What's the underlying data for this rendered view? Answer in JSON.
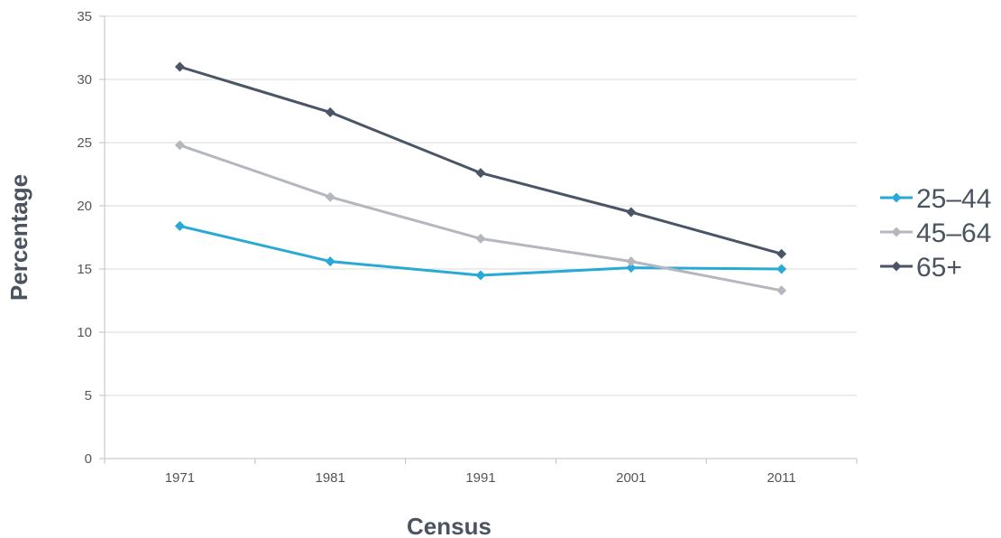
{
  "chart_data": {
    "type": "line",
    "title": "",
    "xlabel": "Census",
    "ylabel": "Percentage",
    "x": [
      "1971",
      "1981",
      "1991",
      "2001",
      "2011"
    ],
    "ylim": [
      0,
      35
    ],
    "yticks": [
      "0",
      "5",
      "10",
      "15",
      "20",
      "25",
      "30",
      "35"
    ],
    "grid": true,
    "legend": "right",
    "series": [
      {
        "name": "25–44",
        "color": "#29a9d6",
        "values": [
          18.4,
          15.6,
          14.5,
          15.1,
          15.0
        ]
      },
      {
        "name": "45–64",
        "color": "#b4b8be",
        "values": [
          24.8,
          20.7,
          17.4,
          15.6,
          13.3
        ]
      },
      {
        "name": "65+",
        "color": "#4a5567",
        "values": [
          31.0,
          27.4,
          22.6,
          19.5,
          16.2
        ]
      }
    ]
  }
}
